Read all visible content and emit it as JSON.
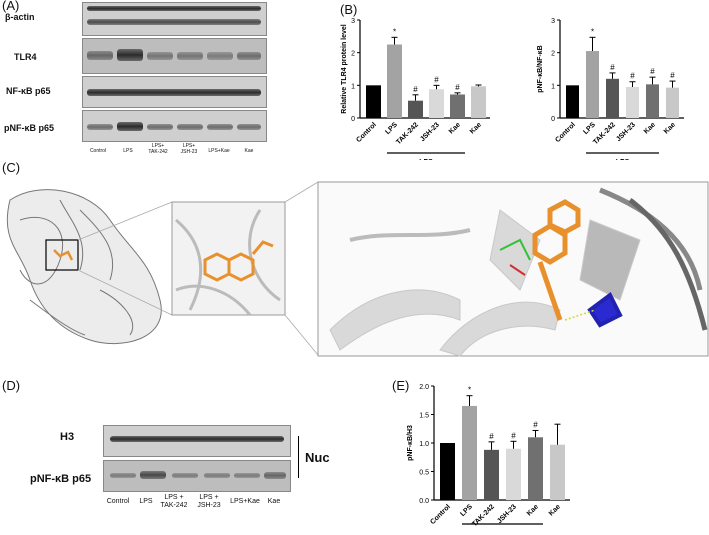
{
  "panel_a": {
    "label": "(A)",
    "rows": [
      "β-actin",
      "TLR4",
      "NF-κB p65",
      "pNF-κB p65"
    ],
    "lanes": [
      "Control",
      "LPS",
      "LPS+\nTAK-242",
      "LPS+\nJSH-23",
      "LPS+Kae",
      "Kae"
    ]
  },
  "panel_b": {
    "label": "(B)"
  },
  "panel_c": {
    "label": "(C)"
  },
  "panel_d": {
    "label": "(D)",
    "rows": [
      "H3",
      "pNF-κB p65"
    ],
    "nuc": "Nuc",
    "lanes": [
      "Control",
      "LPS",
      "LPS +\nTAK-242",
      "LPS +\nJSH-23",
      "LPS+Kae",
      "Kae"
    ]
  },
  "panel_e": {
    "label": "(E)"
  },
  "chart_data": [
    {
      "type": "bar",
      "panel": "B-left",
      "ylabel": "Relative TLR4 protein level",
      "categories": [
        "Control",
        "LPS",
        "TAK-242",
        "JSH-23",
        "Kae",
        "Kae"
      ],
      "values": [
        1.0,
        2.25,
        0.53,
        0.88,
        0.72,
        0.97
      ],
      "errors": [
        0.0,
        0.22,
        0.18,
        0.12,
        0.05,
        0.04
      ],
      "markers": [
        "",
        "*",
        "#",
        "#",
        "#",
        ""
      ],
      "colors": [
        "#000000",
        "#a3a3a3",
        "#555555",
        "#d9d9d9",
        "#707070",
        "#c8c8c8"
      ],
      "ylim": [
        0,
        3
      ],
      "yticks": [
        0,
        1,
        2,
        3
      ],
      "group_label": "LPS",
      "group_span": [
        1,
        4
      ]
    },
    {
      "type": "bar",
      "panel": "B-right",
      "ylabel": "pNF-κB/NF-κB",
      "categories": [
        "Control",
        "LPS",
        "TAK-242",
        "JSH-23",
        "Kae",
        "Kae"
      ],
      "values": [
        1.0,
        2.05,
        1.2,
        0.95,
        1.03,
        0.93
      ],
      "errors": [
        0.0,
        0.42,
        0.18,
        0.16,
        0.22,
        0.2
      ],
      "markers": [
        "",
        "*",
        "#",
        "#",
        "#",
        "#"
      ],
      "colors": [
        "#000000",
        "#a3a3a3",
        "#555555",
        "#d9d9d9",
        "#707070",
        "#c8c8c8"
      ],
      "ylim": [
        0,
        3
      ],
      "yticks": [
        0,
        1,
        2,
        3
      ],
      "group_label": "LPS",
      "group_span": [
        1,
        4
      ]
    },
    {
      "type": "bar",
      "panel": "E",
      "ylabel": "pNF-κB/H3",
      "categories": [
        "Control",
        "LPS",
        "TAK-242",
        "JSH-23",
        "Kae",
        "Kae"
      ],
      "values": [
        1.0,
        1.65,
        0.88,
        0.9,
        1.1,
        0.97
      ],
      "errors": [
        0.0,
        0.18,
        0.14,
        0.13,
        0.12,
        0.36
      ],
      "markers": [
        "",
        "*",
        "#",
        "#",
        "#",
        ""
      ],
      "colors": [
        "#000000",
        "#a3a3a3",
        "#555555",
        "#d9d9d9",
        "#707070",
        "#c8c8c8"
      ],
      "ylim": [
        0,
        2.0
      ],
      "yticks": [
        "0.0",
        "0.5",
        "1.0",
        "1.5",
        "2.0"
      ],
      "group_label": "LPS",
      "group_span": [
        1,
        4
      ]
    }
  ]
}
